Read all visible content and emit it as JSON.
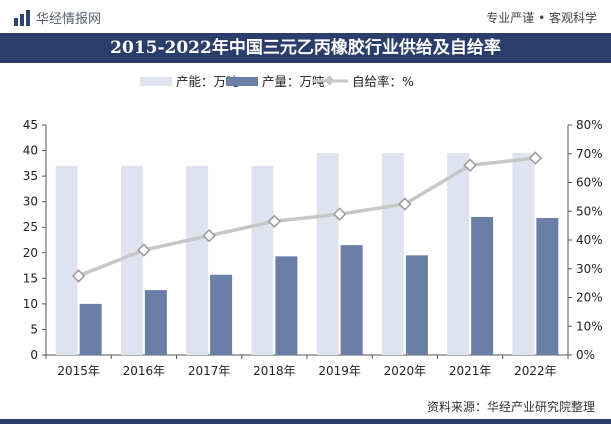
{
  "header": {
    "brand": "华经情报网",
    "slogan": "专业严谨 • 客观科学",
    "title": "2015-2022年中国三元乙丙橡胶行业供给及自给率"
  },
  "colors": {
    "title_bg": "#2b3d6a",
    "capacity_bar": "#dfe3ef",
    "production_bar": "#6b7fa6",
    "ratio_line": "#c7c7c7"
  },
  "chart_data": {
    "type": "bar",
    "categories": [
      "2015年",
      "2016年",
      "2017年",
      "2018年",
      "2019年",
      "2020年",
      "2021年",
      "2022年"
    ],
    "series": [
      {
        "name": "产能：万吨",
        "type": "bar",
        "axis": "left",
        "values": [
          37,
          37,
          37,
          37,
          39.5,
          39.5,
          39.5,
          39.5
        ]
      },
      {
        "name": "产量：万吨",
        "type": "bar",
        "axis": "left",
        "values": [
          10,
          12.7,
          15.7,
          19.3,
          21.5,
          19.5,
          27,
          26.8
        ]
      },
      {
        "name": "自给率：%",
        "type": "line",
        "axis": "right",
        "values": [
          27.5,
          36.5,
          41.5,
          46.5,
          49,
          52.5,
          66,
          68.5
        ]
      }
    ],
    "y_left": {
      "min": 0,
      "max": 45,
      "ticks": [
        "0",
        "5",
        "10",
        "15",
        "20",
        "25",
        "30",
        "35",
        "40",
        "45"
      ]
    },
    "y_right": {
      "min": 0,
      "max": 80,
      "ticks": [
        "0%",
        "10%",
        "20%",
        "30%",
        "40%",
        "50%",
        "60%",
        "70%",
        "80%"
      ]
    },
    "legend_position": "top",
    "grid": false
  },
  "footer": {
    "source": "资料来源：华经产业研究院整理"
  }
}
